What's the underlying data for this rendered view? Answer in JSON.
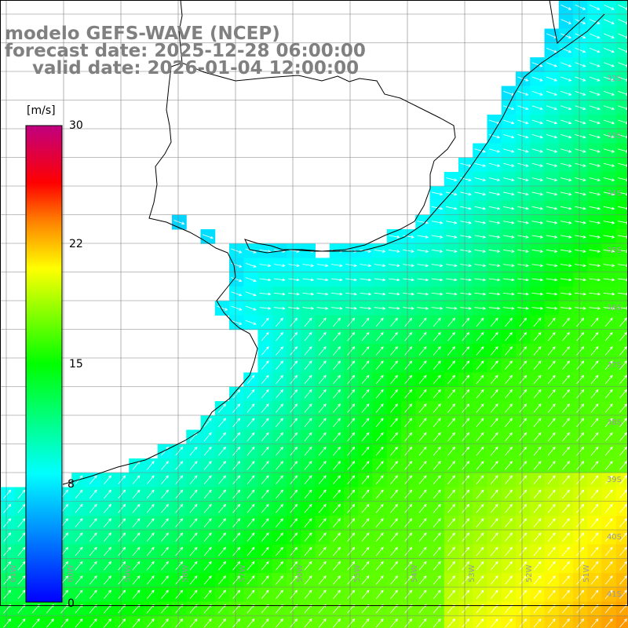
{
  "title": {
    "line1": "modelo GEFS-WAVE (NCEP)",
    "line2": "forecast date: 2025-12-28 06:00:00",
    "line3": "valid date: 2026-01-04 12:00:00"
  },
  "colorbar": {
    "unit": "[m/s]",
    "ticks": [
      "30",
      "22",
      "15",
      "8",
      "0"
    ],
    "stops": [
      "#0000ff",
      "#00ffff",
      "#00ff00",
      "#ffff00",
      "#ff8000",
      "#ff0000",
      "#c00080"
    ]
  },
  "lat_labels": [
    "32S",
    "33S",
    "34S",
    "35S",
    "36S",
    "37S",
    "38S",
    "39S",
    "40S",
    "41S"
  ],
  "lon_labels": [
    "61W",
    "60W",
    "59W",
    "58W",
    "57W",
    "56W",
    "55W",
    "54W",
    "53W",
    "52W",
    "51W"
  ],
  "colors": {
    "land": "#ffffff",
    "grid": "#808080",
    "coast": "#000000",
    "arrow": "#ffffff",
    "title": "#808080"
  }
}
